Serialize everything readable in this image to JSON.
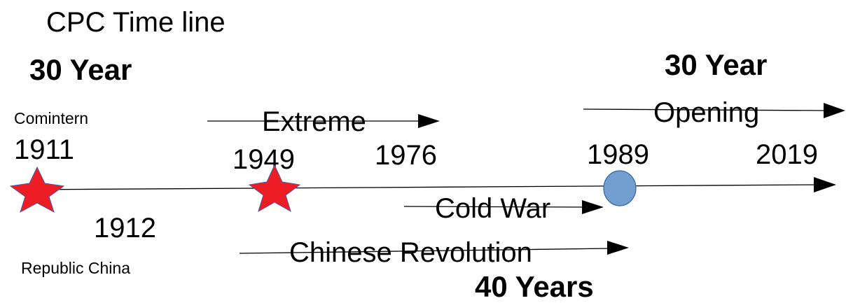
{
  "title": "CPC Time line",
  "labels": {
    "left_period": "30 Year",
    "right_period": "30 Year",
    "comintern": "Comintern",
    "republic": "Republic China",
    "bottom_period": "40 Years"
  },
  "years": {
    "y1911": "1911",
    "y1912": "1912",
    "y1949": "1949",
    "y1976": "1976",
    "y1989": "1989",
    "y2019": "2019"
  },
  "arrows": {
    "extreme": "Extreme",
    "opening": "Opening",
    "cold_war": "Cold War",
    "revolution": "Chinese Revolution"
  },
  "colors": {
    "star": "#ee1c25",
    "star_outline": "#4a56a0",
    "dot": "#729fcf",
    "dot_outline": "#3465a4"
  }
}
